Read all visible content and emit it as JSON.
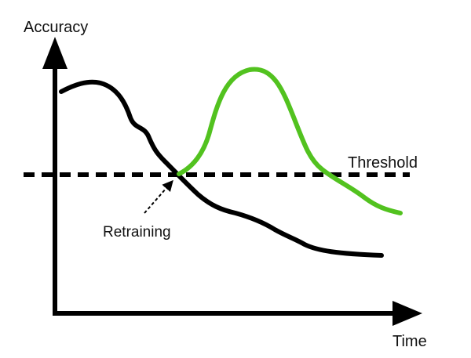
{
  "axes": {
    "y_label": "Accuracy",
    "x_label": "Time"
  },
  "annotations": {
    "threshold": "Threshold",
    "retraining": "Retraining"
  },
  "colors": {
    "baseline_curve": "#000000",
    "retrained_curve": "#52c21f",
    "axes": "#000000",
    "threshold_line": "#000000"
  },
  "curves": [
    {
      "name": "accuracy-without-retraining",
      "trend": "decreasing"
    },
    {
      "name": "accuracy-after-retraining",
      "trend": "rises-then-falls"
    }
  ]
}
